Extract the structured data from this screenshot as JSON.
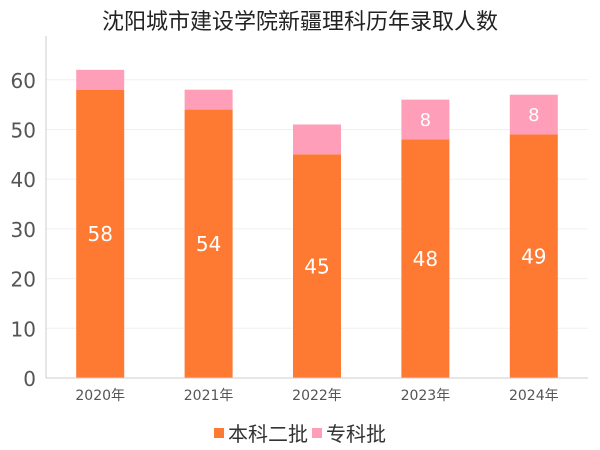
{
  "chart_data": {
    "type": "bar",
    "stacked": true,
    "title": "沈阳城市建设学院新疆理科历年录取人数",
    "categories": [
      "2020年",
      "2021年",
      "2022年",
      "2023年",
      "2024年"
    ],
    "series": [
      {
        "name": "本科二批",
        "color": "#fe7932",
        "values": [
          58,
          54,
          45,
          48,
          49
        ],
        "labels": [
          "58",
          "54",
          "45",
          "48",
          "49"
        ]
      },
      {
        "name": "专科批",
        "color": "#fe9eb9",
        "values": [
          4,
          4,
          6,
          8,
          8
        ],
        "labels": [
          null,
          null,
          null,
          "8",
          "8"
        ]
      }
    ],
    "ylim": [
      0,
      68
    ],
    "yticks": [
      0,
      10,
      20,
      30,
      40,
      50,
      60
    ],
    "ytick_labels": [
      "0",
      "10",
      "20",
      "30",
      "40",
      "50",
      "60"
    ],
    "xlabel": "",
    "ylabel": "",
    "grid": true,
    "legend_position": "bottom"
  }
}
